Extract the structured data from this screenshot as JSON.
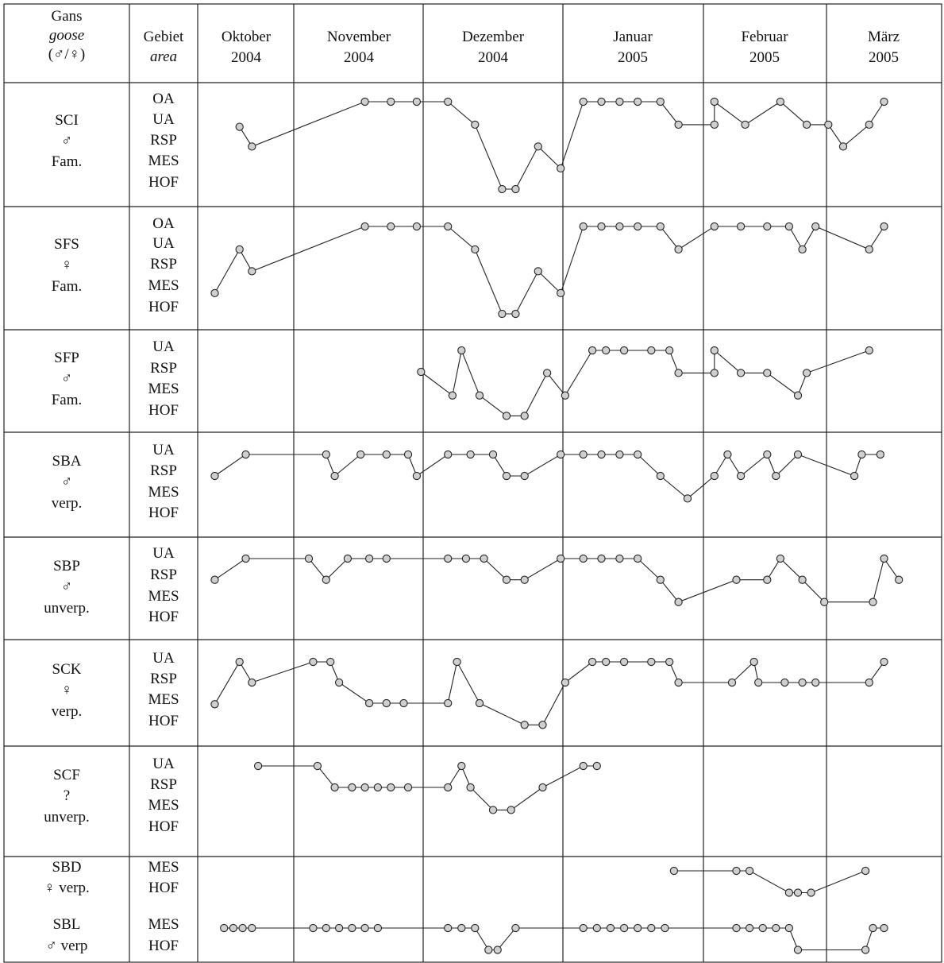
{
  "header": {
    "col_goose": [
      "Gans",
      "goose",
      "(♂/♀)"
    ],
    "col_area": [
      "Gebiet",
      "area"
    ],
    "months": [
      [
        "Oktober",
        "2004"
      ],
      [
        "November",
        "2004"
      ],
      [
        "Dezember",
        "2004"
      ],
      [
        "Januar",
        "2005"
      ],
      [
        "Februar",
        "2005"
      ],
      [
        "März",
        "2005"
      ]
    ]
  },
  "chart_data": {
    "type": "line",
    "x_axis": "time (Oktober 2004 – März 2005)",
    "geese": [
      {
        "name": "SCI",
        "sex": "♂",
        "status": "Fam.",
        "areas": [
          "OA",
          "UA",
          "RSP",
          "MES",
          "HOF"
        ],
        "points": [
          [
            "2004-10-14",
            1.15
          ],
          [
            "2004-10-18",
            2.05
          ],
          [
            "2004-11-17",
            0
          ],
          [
            "2004-11-23",
            0
          ],
          [
            "2004-11-29",
            0
          ],
          [
            "2004-12-06",
            0
          ],
          [
            "2004-12-12",
            1.05
          ],
          [
            "2004-12-18",
            4
          ],
          [
            "2004-12-21",
            4
          ],
          [
            "2004-12-26",
            2.05
          ],
          [
            "2004-12-31",
            3.05
          ],
          [
            "2005-01-05",
            0
          ],
          [
            "2005-01-09",
            0
          ],
          [
            "2005-01-13",
            0
          ],
          [
            "2005-01-17",
            0
          ],
          [
            "2005-01-22",
            0
          ],
          [
            "2005-01-26",
            1.05
          ],
          [
            "2005-02-03",
            1.05
          ],
          [
            "2005-02-03",
            0
          ],
          [
            "2005-02-10",
            1.05
          ],
          [
            "2005-02-18",
            0
          ],
          [
            "2005-02-24",
            1.05
          ],
          [
            "2005-03-01",
            1.05
          ],
          [
            "2005-03-05",
            2.05
          ],
          [
            "2005-03-12",
            1.05
          ],
          [
            "2005-03-16",
            0
          ]
        ]
      },
      {
        "name": "SFS",
        "sex": "♀",
        "status": "Fam.",
        "areas": [
          "OA",
          "UA",
          "RSP",
          "MES",
          "HOF"
        ],
        "points": [
          [
            "2004-10-06",
            3.05
          ],
          [
            "2004-10-14",
            1.05
          ],
          [
            "2004-10-18",
            2.05
          ],
          [
            "2004-11-17",
            0
          ],
          [
            "2004-11-23",
            0
          ],
          [
            "2004-11-29",
            0
          ],
          [
            "2004-12-06",
            0
          ],
          [
            "2004-12-12",
            1.05
          ],
          [
            "2004-12-18",
            4
          ],
          [
            "2004-12-21",
            4
          ],
          [
            "2004-12-26",
            2.05
          ],
          [
            "2004-12-31",
            3.05
          ],
          [
            "2005-01-05",
            0
          ],
          [
            "2005-01-09",
            0
          ],
          [
            "2005-01-13",
            0
          ],
          [
            "2005-01-17",
            0
          ],
          [
            "2005-01-22",
            0
          ],
          [
            "2005-01-26",
            1.05
          ],
          [
            "2005-02-03",
            0
          ],
          [
            "2005-02-09",
            0
          ],
          [
            "2005-02-15",
            0
          ],
          [
            "2005-02-20",
            0
          ],
          [
            "2005-02-23",
            1.05
          ],
          [
            "2005-02-26",
            0
          ],
          [
            "2005-03-12",
            1.05
          ],
          [
            "2005-03-16",
            0
          ]
        ]
      },
      {
        "name": "SFP",
        "sex": "♂",
        "status": "Fam.",
        "areas": [
          "UA",
          "RSP",
          "MES",
          "HOF"
        ],
        "points": [
          [
            "2004-11-30",
            1
          ],
          [
            "2004-12-07",
            2.1
          ],
          [
            "2004-12-09",
            0
          ],
          [
            "2004-12-13",
            2.1
          ],
          [
            "2004-12-19",
            3.05
          ],
          [
            "2004-12-23",
            3.05
          ],
          [
            "2004-12-28",
            1.05
          ],
          [
            "2005-01-01",
            2.1
          ],
          [
            "2005-01-07",
            0
          ],
          [
            "2005-01-10",
            0
          ],
          [
            "2005-01-14",
            0
          ],
          [
            "2005-01-20",
            0
          ],
          [
            "2005-01-24",
            0
          ],
          [
            "2005-01-26",
            1.05
          ],
          [
            "2005-02-03",
            1.05
          ],
          [
            "2005-02-03",
            0
          ],
          [
            "2005-02-09",
            1.05
          ],
          [
            "2005-02-15",
            1.05
          ],
          [
            "2005-02-22",
            2.1
          ],
          [
            "2005-02-24",
            1.05
          ],
          [
            "2005-03-12",
            0
          ]
        ]
      },
      {
        "name": "SBA",
        "sex": "♂",
        "status": "verp.",
        "areas": [
          "UA",
          "RSP",
          "MES",
          "HOF"
        ],
        "points": [
          [
            "2004-10-06",
            1
          ],
          [
            "2004-10-16",
            0
          ],
          [
            "2004-11-08",
            0
          ],
          [
            "2004-11-10",
            1
          ],
          [
            "2004-11-16",
            0
          ],
          [
            "2004-11-22",
            0
          ],
          [
            "2004-11-27",
            0
          ],
          [
            "2004-11-29",
            1
          ],
          [
            "2004-12-06",
            0
          ],
          [
            "2004-12-11",
            0
          ],
          [
            "2004-12-16",
            0
          ],
          [
            "2004-12-19",
            1
          ],
          [
            "2004-12-23",
            1
          ],
          [
            "2004-12-31",
            0
          ],
          [
            "2005-01-05",
            0
          ],
          [
            "2005-01-09",
            0
          ],
          [
            "2005-01-13",
            0
          ],
          [
            "2005-01-17",
            0
          ],
          [
            "2005-01-22",
            1
          ],
          [
            "2005-01-28",
            2.05
          ],
          [
            "2005-02-03",
            1
          ],
          [
            "2005-02-06",
            0
          ],
          [
            "2005-02-09",
            1
          ],
          [
            "2005-02-15",
            0
          ],
          [
            "2005-02-17",
            1
          ],
          [
            "2005-02-22",
            0
          ],
          [
            "2005-03-08",
            1
          ],
          [
            "2005-03-10",
            0
          ],
          [
            "2005-03-15",
            0
          ]
        ]
      },
      {
        "name": "SBP",
        "sex": "♂",
        "status": "unverp.",
        "areas": [
          "UA",
          "RSP",
          "MES",
          "HOF"
        ],
        "points": [
          [
            "2004-10-06",
            1
          ],
          [
            "2004-10-16",
            0
          ],
          [
            "2004-11-04",
            0
          ],
          [
            "2004-11-08",
            1
          ],
          [
            "2004-11-13",
            0
          ],
          [
            "2004-11-18",
            0
          ],
          [
            "2004-11-22",
            0
          ],
          [
            "2004-12-06",
            0
          ],
          [
            "2004-12-10",
            0
          ],
          [
            "2004-12-14",
            0
          ],
          [
            "2004-12-19",
            1
          ],
          [
            "2004-12-23",
            1
          ],
          [
            "2004-12-31",
            0
          ],
          [
            "2005-01-05",
            0
          ],
          [
            "2005-01-09",
            0
          ],
          [
            "2005-01-13",
            0
          ],
          [
            "2005-01-17",
            0
          ],
          [
            "2005-01-22",
            1
          ],
          [
            "2005-01-26",
            2.05
          ],
          [
            "2005-02-08",
            1
          ],
          [
            "2005-02-15",
            1
          ],
          [
            "2005-02-18",
            0
          ],
          [
            "2005-02-23",
            1
          ],
          [
            "2005-02-28",
            2.05
          ],
          [
            "2005-03-13",
            2.05
          ],
          [
            "2005-03-16",
            0
          ],
          [
            "2005-03-20",
            1
          ]
        ]
      },
      {
        "name": "SCK",
        "sex": "♀",
        "status": "verp.",
        "areas": [
          "UA",
          "RSP",
          "MES",
          "HOF"
        ],
        "points": [
          [
            "2004-10-06",
            2.05
          ],
          [
            "2004-10-14",
            0
          ],
          [
            "2004-10-18",
            1
          ],
          [
            "2004-11-05",
            0
          ],
          [
            "2004-11-09",
            0
          ],
          [
            "2004-11-11",
            1
          ],
          [
            "2004-11-18",
            2
          ],
          [
            "2004-11-22",
            2
          ],
          [
            "2004-11-26",
            2
          ],
          [
            "2004-12-06",
            2
          ],
          [
            "2004-12-08",
            0
          ],
          [
            "2004-12-13",
            2
          ],
          [
            "2004-12-23",
            3.05
          ],
          [
            "2004-12-27",
            3.05
          ],
          [
            "2005-01-01",
            1
          ],
          [
            "2005-01-07",
            0
          ],
          [
            "2005-01-10",
            0
          ],
          [
            "2005-01-14",
            0
          ],
          [
            "2005-01-20",
            0
          ],
          [
            "2005-01-24",
            0
          ],
          [
            "2005-01-26",
            1
          ],
          [
            "2005-02-07",
            1
          ],
          [
            "2005-02-12",
            0
          ],
          [
            "2005-02-13",
            1
          ],
          [
            "2005-02-19",
            1
          ],
          [
            "2005-02-23",
            1
          ],
          [
            "2005-02-26",
            1
          ],
          [
            "2005-03-12",
            1
          ],
          [
            "2005-03-16",
            0
          ]
        ]
      },
      {
        "name": "SCF",
        "sex": "?",
        "status": "unverp.",
        "areas": [
          "UA",
          "RSP",
          "MES",
          "HOF"
        ],
        "points": [
          [
            "2004-10-20",
            0
          ],
          [
            "2004-11-06",
            0
          ],
          [
            "2004-11-10",
            1
          ],
          [
            "2004-11-14",
            1
          ],
          [
            "2004-11-17",
            1
          ],
          [
            "2004-11-20",
            1
          ],
          [
            "2004-11-23",
            1
          ],
          [
            "2004-11-27",
            1
          ],
          [
            "2004-12-06",
            1
          ],
          [
            "2004-12-09",
            0
          ],
          [
            "2004-12-11",
            1
          ],
          [
            "2004-12-16",
            2.05
          ],
          [
            "2004-12-20",
            2.05
          ],
          [
            "2004-12-27",
            1
          ],
          [
            "2005-01-05",
            0
          ],
          [
            "2005-01-08",
            0
          ]
        ]
      },
      {
        "name": "SBD",
        "sex": "♀",
        "status": "verp.",
        "areas": [
          "MES",
          "HOF"
        ],
        "points": [
          [
            "2005-01-25",
            0
          ],
          [
            "2005-02-08",
            0
          ],
          [
            "2005-02-11",
            0
          ],
          [
            "2005-02-20",
            1
          ],
          [
            "2005-02-22",
            1
          ],
          [
            "2005-02-25",
            1
          ],
          [
            "2005-03-11",
            0
          ]
        ]
      },
      {
        "name": "SBL",
        "sex": "♂",
        "status": "verp",
        "areas": [
          "MES",
          "HOF"
        ],
        "points": [
          [
            "2004-10-09",
            0
          ],
          [
            "2004-10-12",
            0
          ],
          [
            "2004-10-15",
            0
          ],
          [
            "2004-10-18",
            0
          ],
          [
            "2004-11-05",
            0
          ],
          [
            "2004-11-08",
            0
          ],
          [
            "2004-11-11",
            0
          ],
          [
            "2004-11-14",
            0
          ],
          [
            "2004-11-17",
            0
          ],
          [
            "2004-11-20",
            0
          ],
          [
            "2004-12-06",
            0
          ],
          [
            "2004-12-09",
            0
          ],
          [
            "2004-12-12",
            0
          ],
          [
            "2004-12-15",
            1
          ],
          [
            "2004-12-17",
            1
          ],
          [
            "2004-12-21",
            0
          ],
          [
            "2005-01-05",
            0
          ],
          [
            "2005-01-08",
            0
          ],
          [
            "2005-01-11",
            0
          ],
          [
            "2005-01-14",
            0
          ],
          [
            "2005-01-17",
            0
          ],
          [
            "2005-01-20",
            0
          ],
          [
            "2005-01-23",
            0
          ],
          [
            "2005-02-08",
            0
          ],
          [
            "2005-02-11",
            0
          ],
          [
            "2005-02-14",
            0
          ],
          [
            "2005-02-17",
            0
          ],
          [
            "2005-02-20",
            0
          ],
          [
            "2005-02-22",
            1
          ],
          [
            "2005-03-11",
            1
          ],
          [
            "2005-03-13",
            0
          ],
          [
            "2005-03-16",
            0
          ]
        ]
      }
    ]
  }
}
